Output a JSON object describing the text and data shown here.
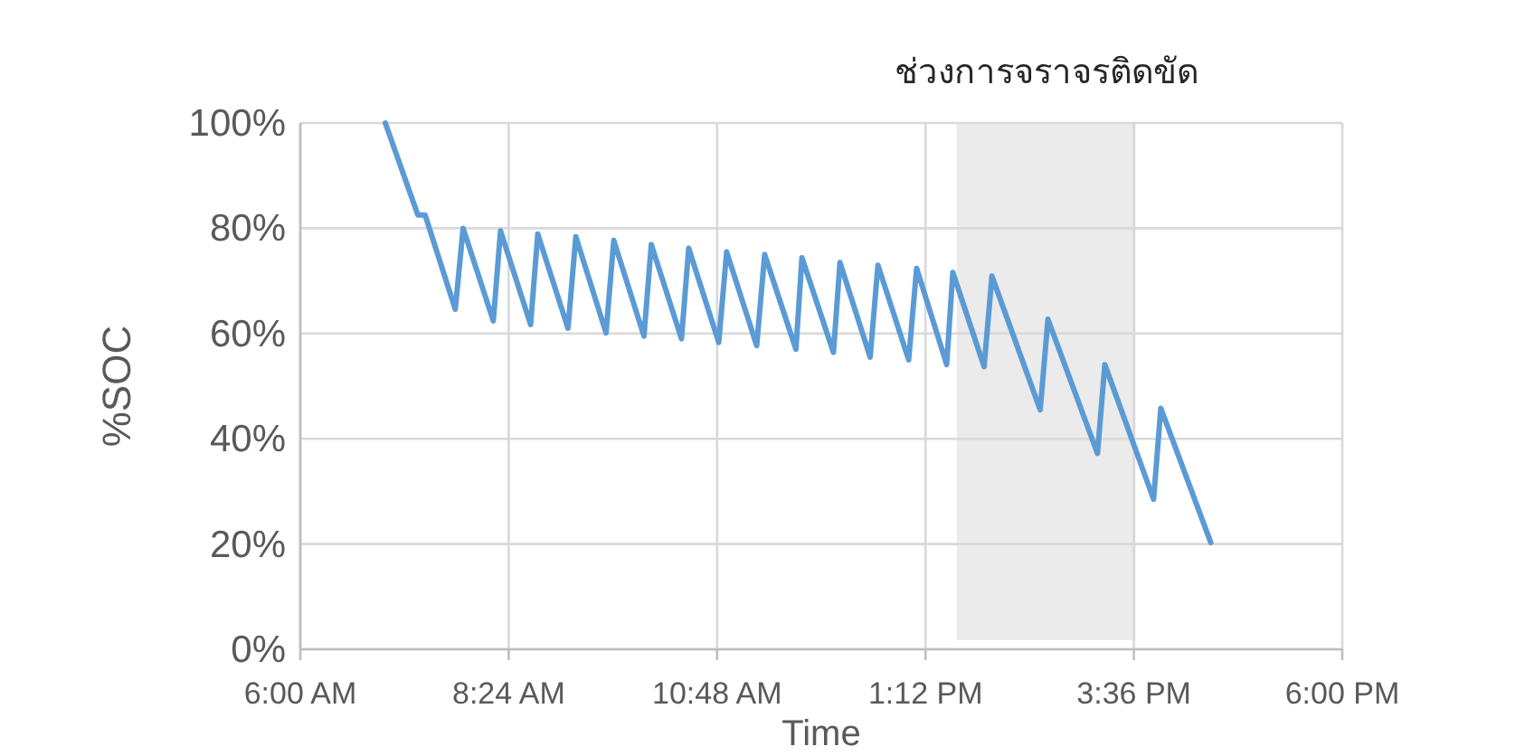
{
  "chart_data": {
    "type": "line",
    "xlabel": "Time",
    "ylabel": "%SOC",
    "x": [
      6.979,
      7.354,
      7.4375,
      7.785,
      7.875,
      8.223,
      8.306,
      8.652,
      8.735,
      9.083,
      9.173,
      9.521,
      9.61,
      9.958,
      10.042,
      10.39,
      10.473,
      10.819,
      10.91,
      11.256,
      11.348,
      11.708,
      11.777,
      12.14,
      12.215,
      12.563,
      12.652,
      13.006,
      13.098,
      13.444,
      13.515,
      13.875,
      13.965,
      14.521,
      14.61,
      15.181,
      15.265,
      15.827,
      15.91,
      16.485
    ],
    "series": [
      {
        "color": "#5b9bd5",
        "values": [
          100,
          82.5,
          82.5,
          64.6,
          80,
          62.4,
          79.5,
          61.7,
          78.9,
          61,
          78.4,
          60.1,
          77.7,
          59.5,
          76.9,
          59,
          76.2,
          58.3,
          75.5,
          57.7,
          75,
          57,
          74.4,
          56.4,
          73.5,
          55.5,
          73,
          55,
          72.4,
          54.1,
          71.6,
          53.7,
          70.9,
          45.5,
          62.7,
          37.2,
          54.1,
          28.5,
          45.8,
          20.3
        ]
      }
    ],
    "xlim": [
      6,
      18
    ],
    "xticks": [
      {
        "value": 6,
        "label": "6:00 AM"
      },
      {
        "value": 8.4,
        "label": "8:24 AM"
      },
      {
        "value": 10.8,
        "label": "10:48 AM"
      },
      {
        "value": 13.2,
        "label": "1:12 PM"
      },
      {
        "value": 15.6,
        "label": "3:36 PM"
      },
      {
        "value": 18,
        "label": "6:00 PM"
      }
    ],
    "ylim": [
      0,
      100
    ],
    "yticks": [
      {
        "value": 0,
        "label": "0%"
      },
      {
        "value": 20,
        "label": "20%"
      },
      {
        "value": 40,
        "label": "40%"
      },
      {
        "value": 60,
        "label": "60%"
      },
      {
        "value": 80,
        "label": "80%"
      },
      {
        "value": 100,
        "label": "100%"
      }
    ],
    "bands": [
      {
        "axis": "x",
        "from": 13.56,
        "to": 15.62,
        "label": "ช่วงการจราจรติดขัด",
        "color": "#e7e7e7"
      }
    ],
    "grid": true,
    "line_style": "solid",
    "marker": "none"
  }
}
